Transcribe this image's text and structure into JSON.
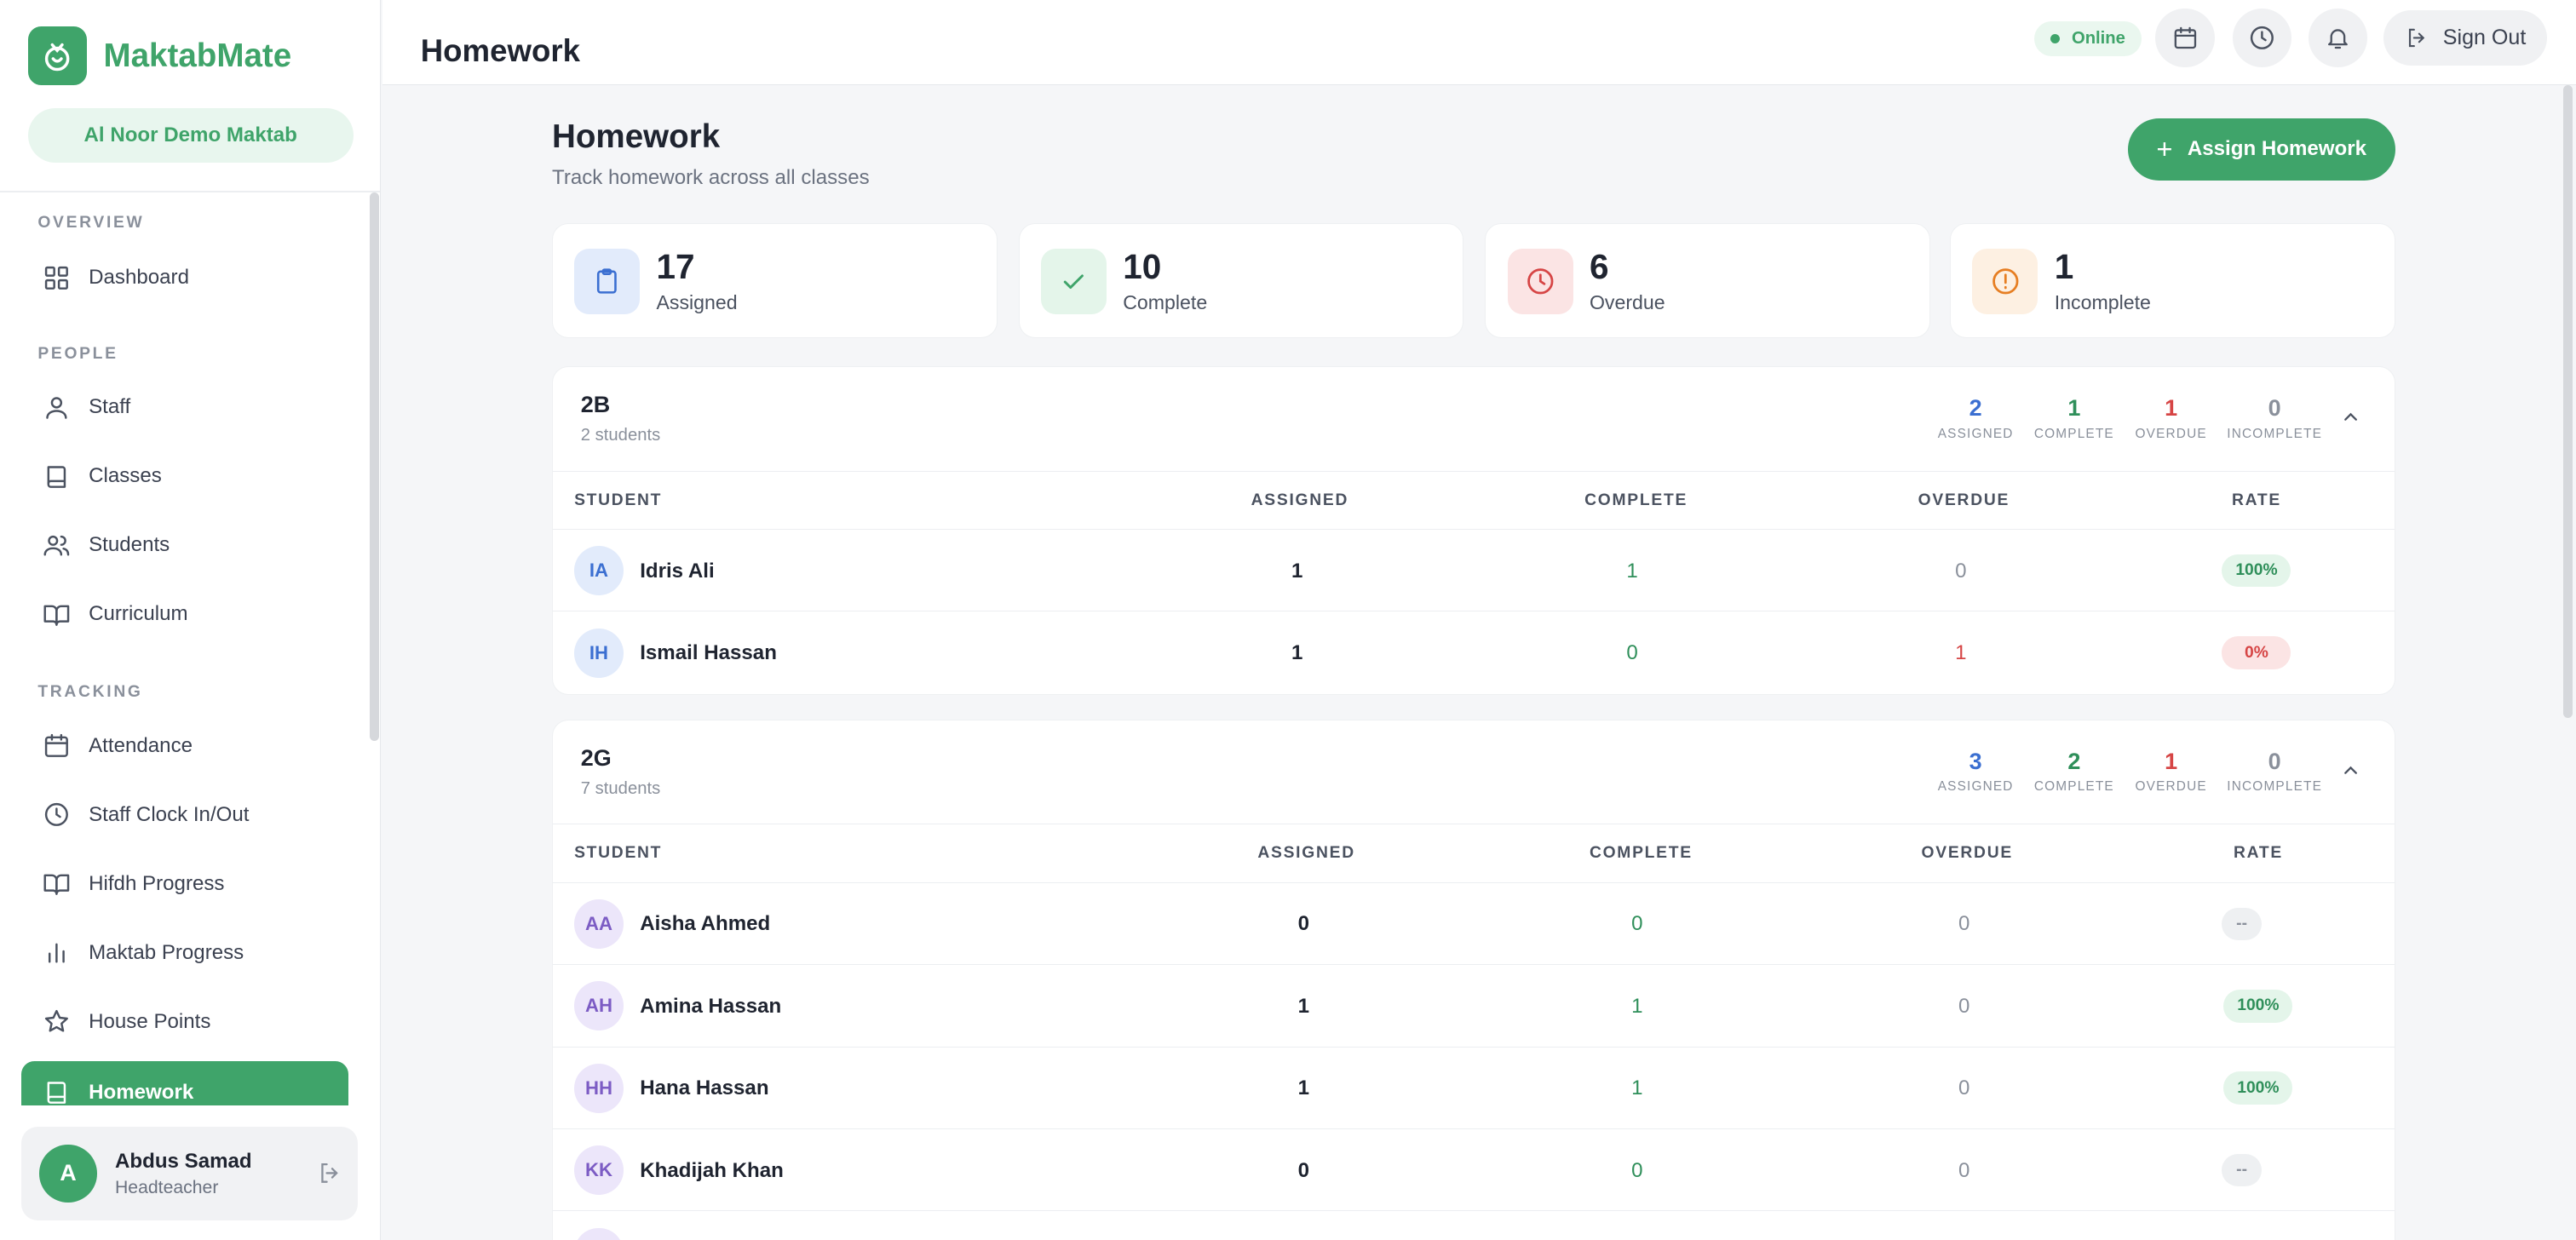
{
  "app": {
    "name": "MaktabMate",
    "org": "Al Noor Demo Maktab"
  },
  "colors": {
    "accent": "#3fa46a",
    "assigned": "#3b6fd1",
    "complete": "#2f8f5a",
    "overdue": "#d64545",
    "incomplete": "#8a909b"
  },
  "sidebar": {
    "sections": {
      "overview": "OVERVIEW",
      "people": "PEOPLE",
      "tracking": "TRACKING"
    },
    "items": [
      {
        "label": "Dashboard",
        "icon": "grid-icon"
      },
      {
        "label": "Staff",
        "icon": "user-icon"
      },
      {
        "label": "Classes",
        "icon": "book-icon"
      },
      {
        "label": "Students",
        "icon": "users-icon"
      },
      {
        "label": "Curriculum",
        "icon": "open-book-icon"
      },
      {
        "label": "Attendance",
        "icon": "calendar-icon"
      },
      {
        "label": "Staff Clock In/Out",
        "icon": "clock-icon"
      },
      {
        "label": "Hifdh Progress",
        "icon": "open-book-icon"
      },
      {
        "label": "Maktab Progress",
        "icon": "bar-chart-icon"
      },
      {
        "label": "House Points",
        "icon": "star-icon"
      },
      {
        "label": "Homework",
        "icon": "book-icon",
        "active": true
      }
    ],
    "user": {
      "initial": "A",
      "name": "Abdus Samad",
      "role": "Headteacher"
    }
  },
  "topbar": {
    "title": "Homework",
    "status": "Online",
    "signout_label": "Sign Out"
  },
  "page": {
    "heading": "Homework",
    "subtitle": "Track homework across all classes",
    "assign_button": "Assign Homework"
  },
  "stats": [
    {
      "value": "17",
      "label": "Assigned",
      "icon": "clipboard-icon"
    },
    {
      "value": "10",
      "label": "Complete",
      "icon": "check-icon"
    },
    {
      "value": "6",
      "label": "Overdue",
      "icon": "clock-icon"
    },
    {
      "value": "1",
      "label": "Incomplete",
      "icon": "alert-circle-icon"
    }
  ],
  "table_headers": {
    "student": "STUDENT",
    "assigned": "ASSIGNED",
    "complete": "COMPLETE",
    "overdue": "OVERDUE",
    "rate": "RATE"
  },
  "summary_labels": {
    "assigned": "ASSIGNED",
    "complete": "COMPLETE",
    "overdue": "OVERDUE",
    "incomplete": "INCOMPLETE"
  },
  "classes": [
    {
      "name": "2B",
      "count": "2 students",
      "summary": {
        "assigned": "2",
        "complete": "1",
        "overdue": "1",
        "incomplete": "0"
      },
      "students": [
        {
          "initials": "IA",
          "name": "Idris Ali",
          "assigned": "1",
          "complete": "1",
          "overdue": "0",
          "rate": "100%"
        },
        {
          "initials": "IH",
          "name": "Ismail Hassan",
          "assigned": "1",
          "complete": "0",
          "overdue": "1",
          "rate": "0%"
        }
      ]
    },
    {
      "name": "2G",
      "count": "7 students",
      "summary": {
        "assigned": "3",
        "complete": "2",
        "overdue": "1",
        "incomplete": "0"
      },
      "students": [
        {
          "initials": "AA",
          "name": "Aisha Ahmed",
          "assigned": "0",
          "complete": "0",
          "overdue": "0",
          "rate": "--"
        },
        {
          "initials": "AH",
          "name": "Amina Hassan",
          "assigned": "1",
          "complete": "1",
          "overdue": "0",
          "rate": "100%"
        },
        {
          "initials": "HH",
          "name": "Hana Hassan",
          "assigned": "1",
          "complete": "1",
          "overdue": "0",
          "rate": "100%"
        },
        {
          "initials": "KK",
          "name": "Khadijah Khan",
          "assigned": "0",
          "complete": "0",
          "overdue": "0",
          "rate": "--"
        }
      ]
    }
  ]
}
